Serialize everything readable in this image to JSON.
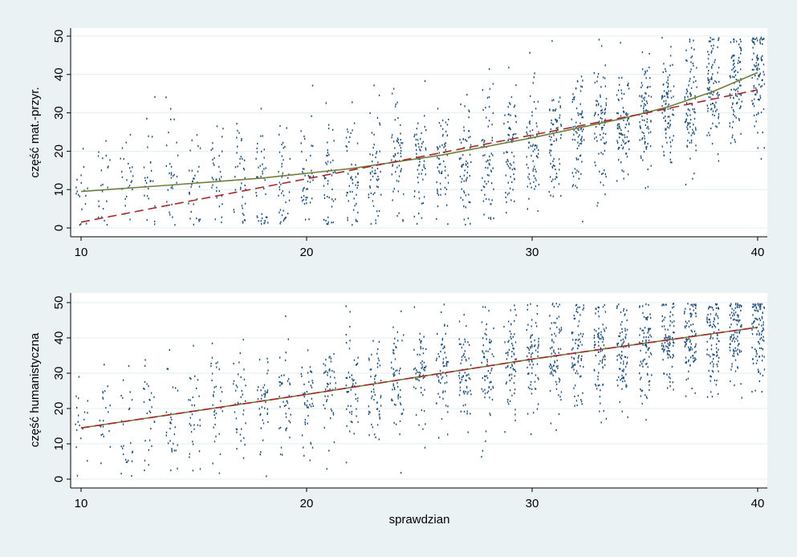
{
  "chart_data": [
    {
      "type": "scatter",
      "xlabel": "",
      "ylabel": "część mat.-przyr.",
      "xlim": [
        10,
        40
      ],
      "ylim": [
        0,
        50
      ],
      "x_ticks": [
        "10",
        "20",
        "30",
        "40"
      ],
      "y_ticks": [
        "0",
        "10",
        "20",
        "30",
        "40",
        "50"
      ],
      "grid": "horizontal",
      "legend": "none",
      "colors": {
        "points": "#1f4e79",
        "fit_solid": "#6f7f3a",
        "fit_dashed": "#a5282c",
        "plot_bg": "#ffffff",
        "figure_bg": "#eaf2f3"
      },
      "point_model": {
        "x_values": "integers 10-40 with jitter",
        "y_center_anchors": [
          [
            10,
            10
          ],
          [
            16,
            12.5
          ],
          [
            20,
            13
          ],
          [
            24,
            16
          ],
          [
            28,
            19.5
          ],
          [
            32,
            25
          ],
          [
            36,
            31
          ],
          [
            40,
            41
          ]
        ],
        "y_spread": 8
      },
      "series": [
        {
          "style": "solid",
          "x": [
            10,
            14,
            18,
            22,
            26,
            30,
            32,
            34,
            36,
            38,
            40
          ],
          "y": [
            9.5,
            11.2,
            13.0,
            15.5,
            19.0,
            23.5,
            26.0,
            28.5,
            31.5,
            35.5,
            40.5
          ]
        },
        {
          "style": "dashed",
          "x": [
            10,
            15,
            20,
            25,
            30,
            35,
            40
          ],
          "y": [
            1.5,
            7.2,
            12.8,
            18.5,
            24.2,
            29.9,
            36.0
          ]
        }
      ]
    },
    {
      "type": "scatter",
      "xlabel": "sprawdzian",
      "ylabel": "część humanistyczna",
      "xlim": [
        10,
        40
      ],
      "ylim": [
        0,
        50
      ],
      "x_ticks": [
        "10",
        "20",
        "30",
        "40"
      ],
      "y_ticks": [
        "0",
        "10",
        "20",
        "30",
        "40",
        "50"
      ],
      "grid": "horizontal",
      "legend": "none",
      "colors": {
        "points": "#1f4e79",
        "fit_solid": "#6f7f3a",
        "fit_dashed": "#a5282c",
        "plot_bg": "#ffffff",
        "figure_bg": "#eaf2f3"
      },
      "point_model": {
        "x_values": "integers 10-40 with jitter",
        "y_center_anchors": [
          [
            10,
            15
          ],
          [
            20,
            24
          ],
          [
            30,
            34
          ],
          [
            40,
            43
          ]
        ],
        "y_spread": 8
      },
      "series": [
        {
          "style": "solid",
          "x": [
            10,
            20,
            30,
            40
          ],
          "y": [
            14.5,
            24.0,
            34.0,
            43.0
          ]
        },
        {
          "style": "dashed",
          "x": [
            10,
            20,
            30,
            40
          ],
          "y": [
            14.5,
            24.0,
            34.0,
            43.0
          ]
        }
      ]
    }
  ]
}
